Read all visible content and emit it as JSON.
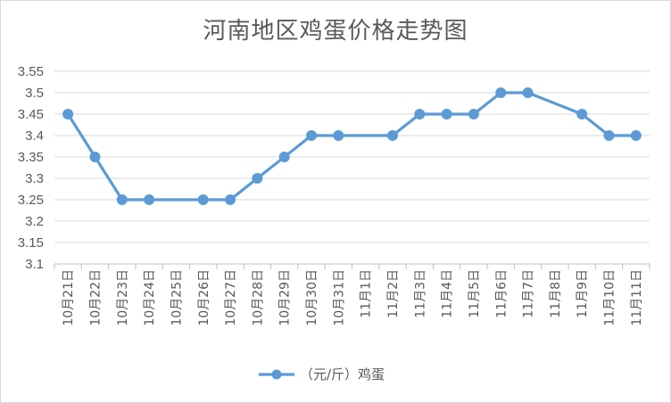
{
  "chart_data": {
    "type": "line",
    "title": "河南地区鸡蛋价格走势图",
    "xlabel": "",
    "ylabel": "",
    "ylim": [
      3.1,
      3.55
    ],
    "yticks": [
      "3.55",
      "3.5",
      "3.45",
      "3.4",
      "3.35",
      "3.3",
      "3.25",
      "3.2",
      "3.15",
      "3.1"
    ],
    "grid": true,
    "legend_position": "bottom",
    "categories": [
      "10月21日",
      "10月22日",
      "10月23日",
      "10月24日",
      "10月25日",
      "10月26日",
      "10月27日",
      "10月28日",
      "10月29日",
      "10月30日",
      "10月31日",
      "11月1日",
      "11月2日",
      "11月3日",
      "11月4日",
      "11月5日",
      "11月6日",
      "11月7日",
      "11月8日",
      "11月9日",
      "11月10日",
      "11月11日"
    ],
    "series": [
      {
        "name": "（元/斤）鸡蛋",
        "color": "#5b9bd5",
        "values": [
          3.45,
          3.35,
          3.25,
          3.25,
          null,
          3.25,
          3.25,
          3.3,
          3.35,
          3.4,
          3.4,
          null,
          3.4,
          3.45,
          3.45,
          3.45,
          3.5,
          3.5,
          null,
          3.45,
          3.4,
          3.4
        ]
      }
    ]
  }
}
